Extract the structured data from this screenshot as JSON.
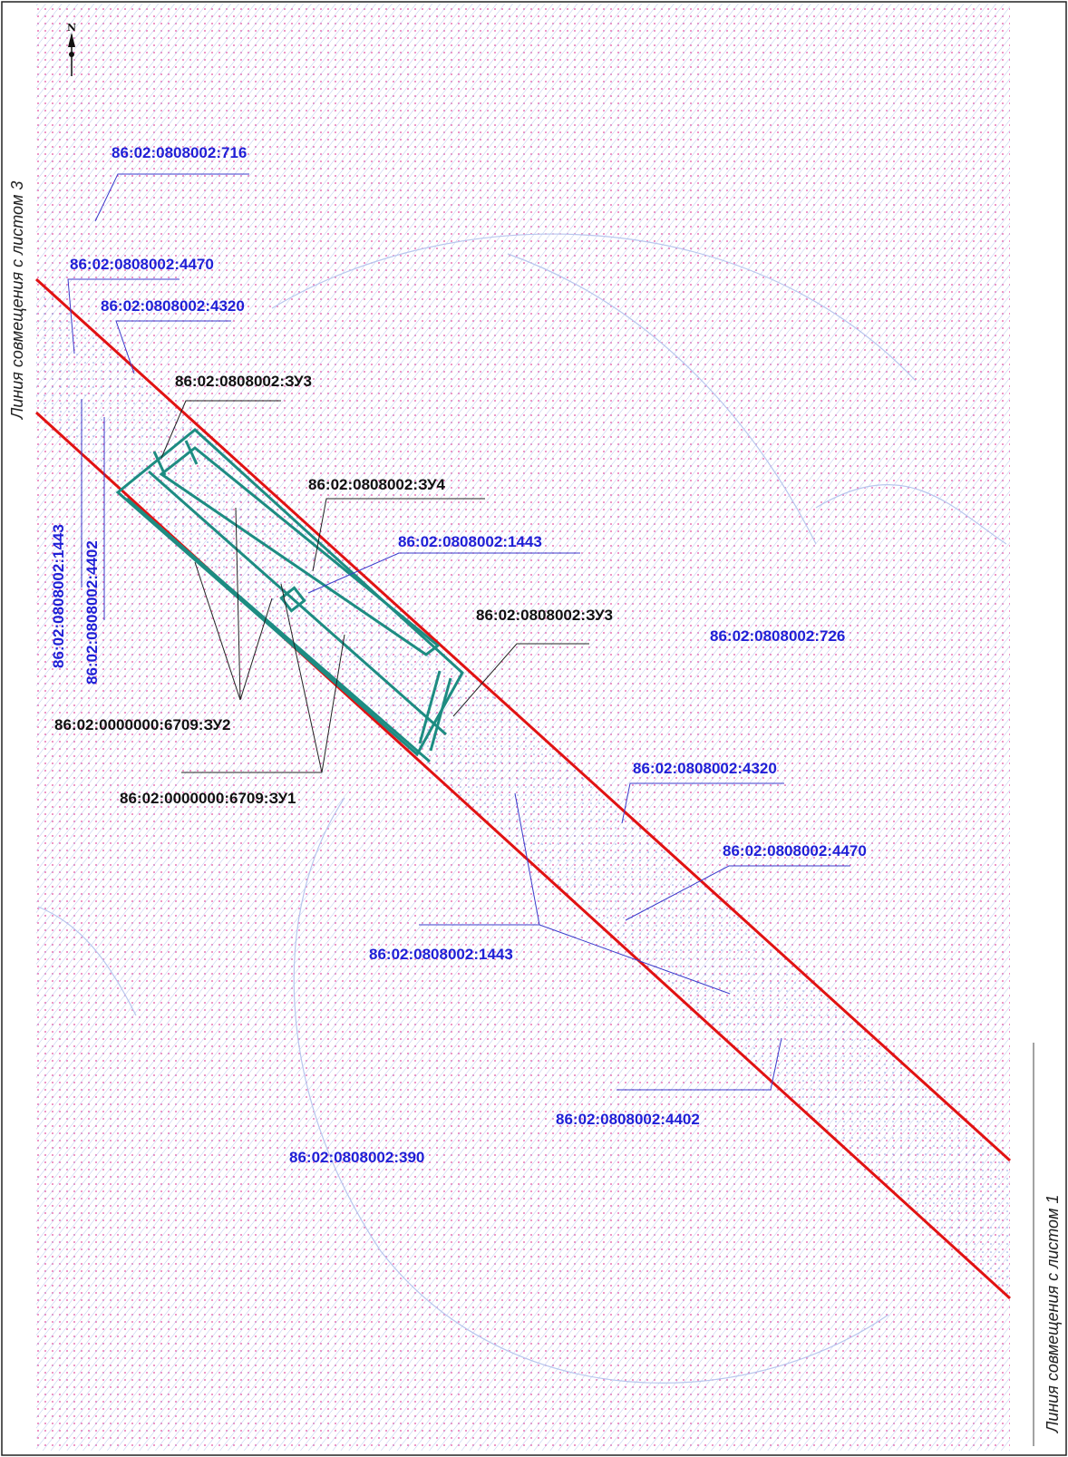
{
  "sheet_labels": {
    "left_side": "Линия совмещения с листом 3",
    "right_side": "Линия совмещения с листом 1",
    "north_symbol": "N"
  },
  "colors": {
    "parcel_label": "#1f1fd6",
    "new_parcel_label": "#111111",
    "boundary_red": "#e11212",
    "new_parcel_outline": "#1d8c82",
    "pink_dot": "#e24a9e",
    "blue_hatch": "#a8b6ea"
  },
  "parcels": {
    "p716": "86:02:0808002:716",
    "p4470_top": "86:02:0808002:4470",
    "p4320_top": "86:02:0808002:4320",
    "p1443_vertical": "86:02:0808002:1443",
    "p4402_vertical": "86:02:0808002:4402",
    "p1443_mid": "86:02:0808002:1443",
    "p726": "86:02:0808002:726",
    "p4320_right": "86:02:0808002:4320",
    "p4470_right": "86:02:0808002:4470",
    "p1443_lower": "86:02:0808002:1443",
    "p4402_lower": "86:02:0808002:4402",
    "p390": "86:02:0808002:390"
  },
  "new_parcels": {
    "zu3_top": "86:02:0808002:ЗУ3",
    "zu4": "86:02:0808002:ЗУ4",
    "zu3_mid": "86:02:0808002:ЗУ3",
    "zu2": "86:02:0000000:6709:ЗУ2",
    "zu1": "86:02:0000000:6709:ЗУ1"
  }
}
